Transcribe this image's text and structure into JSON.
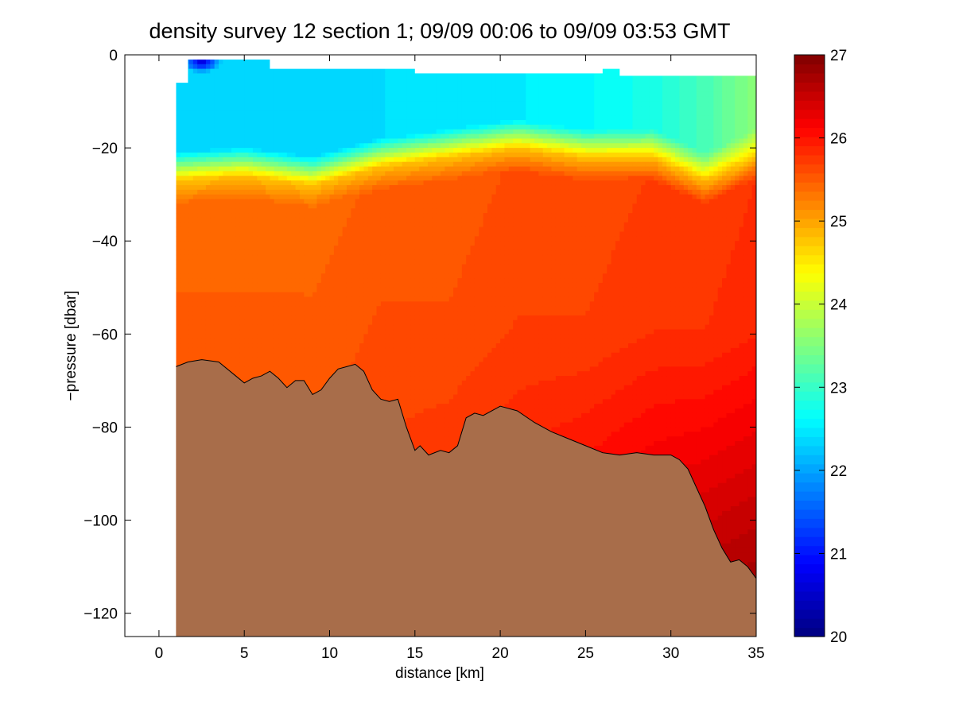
{
  "chart_data": [
    {
      "type": "heatmap",
      "title": "density survey 12 section 1; 09/09 00:06 to 09/09 03:53 GMT",
      "xlabel": "distance [km]",
      "ylabel": "−pressure [dbar]",
      "xlim": [
        -2,
        35
      ],
      "ylim": [
        -125,
        0
      ],
      "xticks": [
        0,
        5,
        10,
        15,
        20,
        25,
        30,
        35
      ],
      "xtick_labels": [
        "0",
        "5",
        "10",
        "15",
        "20",
        "25",
        "30",
        "35"
      ],
      "yticks": [
        0,
        -20,
        -40,
        -60,
        -80,
        -100,
        -120
      ],
      "ytick_labels": [
        "0",
        "−20",
        "−40",
        "−60",
        "−80",
        "−100",
        "−120"
      ],
      "grid": false,
      "colormap": "jet",
      "density_field": [
        {
          "x": 1,
          "upper_mixed": 22.4,
          "thermocline_depth": -27,
          "mid": 25.4,
          "deep": 25.5
        },
        {
          "x": 5,
          "upper_mixed": 22.4,
          "thermocline_depth": -26,
          "mid": 25.4,
          "deep": 25.5
        },
        {
          "x": 9,
          "upper_mixed": 22.4,
          "thermocline_depth": -28,
          "mid": 25.4,
          "deep": 25.6
        },
        {
          "x": 13,
          "upper_mixed": 22.4,
          "thermocline_depth": -24,
          "mid": 25.5,
          "deep": 25.8
        },
        {
          "x": 17,
          "upper_mixed": 22.5,
          "thermocline_depth": -22,
          "mid": 25.5,
          "deep": 25.9
        },
        {
          "x": 21,
          "upper_mixed": 22.5,
          "thermocline_depth": -20,
          "mid": 25.6,
          "deep": 26.1
        },
        {
          "x": 25,
          "upper_mixed": 22.6,
          "thermocline_depth": -22,
          "mid": 25.6,
          "deep": 26.3
        },
        {
          "x": 29,
          "upper_mixed": 22.8,
          "thermocline_depth": -22,
          "mid": 25.7,
          "deep": 26.5
        },
        {
          "x": 32,
          "upper_mixed": 23.1,
          "thermocline_depth": -27,
          "mid": 25.7,
          "deep": 26.6
        },
        {
          "x": 35,
          "upper_mixed": 23.6,
          "thermocline_depth": -22,
          "mid": 25.8,
          "deep": 26.7
        }
      ],
      "surface_minimum": {
        "x": 2.5,
        "y": -1.5,
        "value": 20.5
      },
      "bottom_profile": [
        {
          "x": 1.0,
          "y": -67
        },
        {
          "x": 1.7,
          "y": -66
        },
        {
          "x": 2.5,
          "y": -65.5
        },
        {
          "x": 3.5,
          "y": -66
        },
        {
          "x": 4.5,
          "y": -69
        },
        {
          "x": 5.0,
          "y": -70.5
        },
        {
          "x": 5.5,
          "y": -69.5
        },
        {
          "x": 6.0,
          "y": -69
        },
        {
          "x": 6.5,
          "y": -68
        },
        {
          "x": 7.0,
          "y": -69.5
        },
        {
          "x": 7.5,
          "y": -71.5
        },
        {
          "x": 8.0,
          "y": -70
        },
        {
          "x": 8.5,
          "y": -70
        },
        {
          "x": 9.0,
          "y": -73
        },
        {
          "x": 9.5,
          "y": -72
        },
        {
          "x": 10.0,
          "y": -69.5
        },
        {
          "x": 10.5,
          "y": -67.5
        },
        {
          "x": 11.0,
          "y": -67
        },
        {
          "x": 11.5,
          "y": -66.5
        },
        {
          "x": 12.0,
          "y": -68
        },
        {
          "x": 12.5,
          "y": -72
        },
        {
          "x": 13.0,
          "y": -74
        },
        {
          "x": 13.5,
          "y": -74.5
        },
        {
          "x": 14.0,
          "y": -74
        },
        {
          "x": 14.5,
          "y": -80
        },
        {
          "x": 15.0,
          "y": -85
        },
        {
          "x": 15.3,
          "y": -84
        },
        {
          "x": 15.8,
          "y": -86
        },
        {
          "x": 16.5,
          "y": -85
        },
        {
          "x": 17.0,
          "y": -85.5
        },
        {
          "x": 17.5,
          "y": -84
        },
        {
          "x": 18.0,
          "y": -78
        },
        {
          "x": 18.5,
          "y": -77
        },
        {
          "x": 19.0,
          "y": -77.5
        },
        {
          "x": 20.0,
          "y": -75.5
        },
        {
          "x": 21.0,
          "y": -76.5
        },
        {
          "x": 22.0,
          "y": -79
        },
        {
          "x": 23.0,
          "y": -81
        },
        {
          "x": 24.0,
          "y": -82.5
        },
        {
          "x": 25.0,
          "y": -84
        },
        {
          "x": 26.0,
          "y": -85.5
        },
        {
          "x": 27.0,
          "y": -86
        },
        {
          "x": 28.0,
          "y": -85.5
        },
        {
          "x": 29.0,
          "y": -86
        },
        {
          "x": 30.0,
          "y": -86
        },
        {
          "x": 30.5,
          "y": -87
        },
        {
          "x": 31.0,
          "y": -89
        },
        {
          "x": 31.5,
          "y": -93
        },
        {
          "x": 32.0,
          "y": -97
        },
        {
          "x": 32.5,
          "y": -102
        },
        {
          "x": 33.0,
          "y": -106
        },
        {
          "x": 33.5,
          "y": -109
        },
        {
          "x": 34.0,
          "y": -108.5
        },
        {
          "x": 34.5,
          "y": -110
        },
        {
          "x": 35.0,
          "y": -112.5
        }
      ],
      "bottom_fill_color": "#a86d4a",
      "surface_data_top": [
        {
          "x": 1.0,
          "y": -6
        },
        {
          "x": 1.7,
          "y": -6
        },
        {
          "x": 1.7,
          "y": -5
        },
        {
          "x": 1.7,
          "y": -1
        },
        {
          "x": 6.5,
          "y": -1
        },
        {
          "x": 6.5,
          "y": -3
        },
        {
          "x": 15.0,
          "y": -3
        },
        {
          "x": 15.0,
          "y": -4
        },
        {
          "x": 26.0,
          "y": -4
        },
        {
          "x": 26.0,
          "y": -3
        },
        {
          "x": 27.0,
          "y": -3
        },
        {
          "x": 27.0,
          "y": -4.5
        },
        {
          "x": 35.0,
          "y": -4.5
        }
      ]
    },
    {
      "type": "colorbar",
      "colormap": "jet",
      "range": [
        20,
        27
      ],
      "ticks": [
        20,
        21,
        22,
        23,
        24,
        25,
        26,
        27
      ],
      "tick_labels": [
        "20",
        "21",
        "22",
        "23",
        "24",
        "25",
        "26",
        "27"
      ],
      "levels": 64
    }
  ]
}
